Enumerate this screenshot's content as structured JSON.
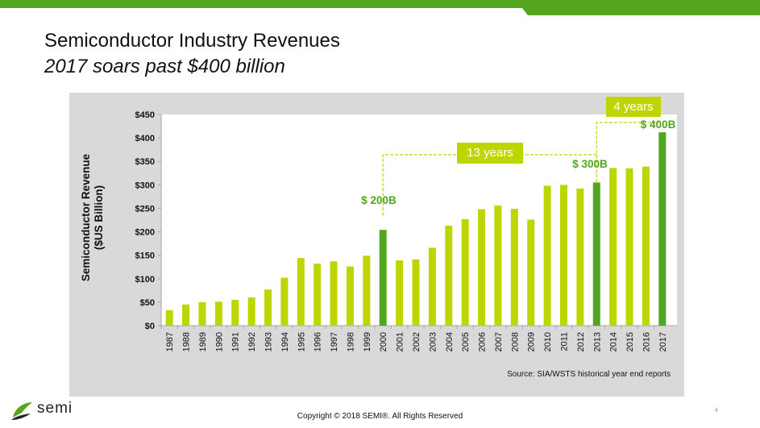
{
  "header": {
    "title": "Semiconductor Industry Revenues",
    "subtitle": "2017 soars past $400 billion"
  },
  "colors": {
    "brand_green": "#55a51f",
    "bar_light": "#bdd600",
    "bar_highlight": "#52a520",
    "panel_bg": "#d9d9d9"
  },
  "chart_data": {
    "type": "bar",
    "title": "",
    "xlabel": "",
    "ylabel": "Semiconductor Revenue ($US Billion)",
    "ylabel_lines": [
      "Semiconductor Revenue",
      "($US Billion)"
    ],
    "ylim": [
      0,
      450
    ],
    "yticks": [
      0,
      50,
      100,
      150,
      200,
      250,
      300,
      350,
      400,
      450
    ],
    "ytick_labels": [
      "$0",
      "$50",
      "$100",
      "$150",
      "$200",
      "$250",
      "$300",
      "$350",
      "$400",
      "$450"
    ],
    "grid": false,
    "categories": [
      "1987",
      "1988",
      "1989",
      "1990",
      "1991",
      "1992",
      "1993",
      "1994",
      "1995",
      "1996",
      "1997",
      "1998",
      "1999",
      "2000",
      "2001",
      "2002",
      "2003",
      "2004",
      "2005",
      "2006",
      "2007",
      "2008",
      "2009",
      "2010",
      "2011",
      "2012",
      "2013",
      "2014",
      "2015",
      "2016",
      "2017"
    ],
    "values": [
      33,
      45,
      50,
      51,
      55,
      60,
      77,
      102,
      144,
      132,
      137,
      126,
      149,
      204,
      139,
      141,
      166,
      213,
      227,
      248,
      256,
      249,
      226,
      298,
      300,
      292,
      305,
      336,
      335,
      339,
      412
    ],
    "highlighted": [
      "2000",
      "2013",
      "2017"
    ],
    "annotations": [
      {
        "label": "$ 200B",
        "year": "2000"
      },
      {
        "label": "$ 300B",
        "year": "2013"
      },
      {
        "label": "$ 400B",
        "year": "2017"
      }
    ],
    "callouts": [
      {
        "label": "13 years",
        "from": "2000",
        "to": "2013"
      },
      {
        "label": "4 years",
        "from": "2013",
        "to": "2017"
      }
    ],
    "source": "Source: SIA/WSTS historical year end reports"
  },
  "footer": {
    "logo_text": "semi",
    "copyright": "Copyright © 2018  SEMI®. All Rights Reserved",
    "page_number": "4"
  }
}
